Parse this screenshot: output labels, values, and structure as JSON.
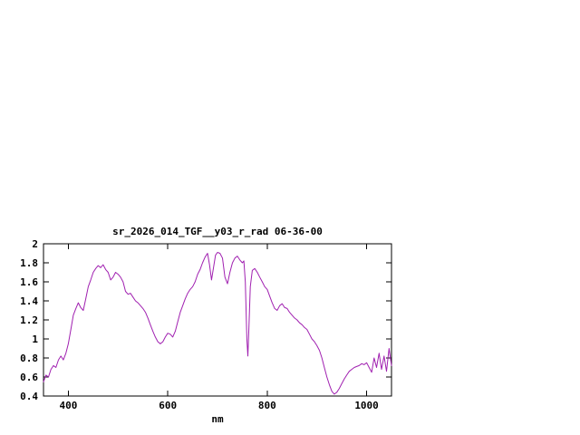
{
  "page": {
    "background": "#ffffff"
  },
  "chart_data": {
    "type": "line",
    "title": "sr_2026_014_TGF__y03_r_rad 06-36-00",
    "xlabel": "nm",
    "ylabel": "",
    "xlim": [
      350,
      1050
    ],
    "ylim": [
      0.4,
      2
    ],
    "grid": false,
    "legend": "none",
    "line_color": "#a020b0",
    "xticks": {
      "values": [
        400,
        600,
        800,
        1000
      ],
      "labels": [
        "400",
        "600",
        "800",
        "1000"
      ]
    },
    "yticks": {
      "values": [
        0.4,
        0.6,
        0.8,
        1,
        1.2,
        1.4,
        1.6,
        1.8,
        2
      ],
      "labels": [
        "0.4",
        "0.6",
        "0.8",
        "1",
        "1.2",
        "1.4",
        "1.6",
        "1.8",
        "2"
      ]
    },
    "series": [
      {
        "name": "sr_2026_014_TGF__y03_r_rad",
        "x": [
          350,
          355,
          360,
          365,
          370,
          375,
          380,
          385,
          390,
          395,
          400,
          405,
          410,
          415,
          420,
          425,
          430,
          435,
          440,
          445,
          450,
          455,
          460,
          465,
          470,
          475,
          480,
          485,
          490,
          495,
          500,
          505,
          510,
          515,
          520,
          525,
          530,
          535,
          540,
          545,
          550,
          555,
          560,
          565,
          570,
          575,
          580,
          585,
          590,
          595,
          600,
          605,
          610,
          615,
          620,
          625,
          630,
          635,
          640,
          645,
          650,
          655,
          660,
          665,
          670,
          675,
          680,
          684,
          688,
          692,
          696,
          700,
          705,
          710,
          715,
          720,
          725,
          730,
          735,
          740,
          745,
          750,
          753,
          756,
          759,
          761,
          763,
          766,
          770,
          775,
          780,
          785,
          790,
          795,
          800,
          805,
          810,
          815,
          820,
          825,
          830,
          835,
          840,
          845,
          850,
          855,
          860,
          865,
          870,
          875,
          880,
          885,
          890,
          895,
          900,
          905,
          910,
          915,
          920,
          925,
          930,
          935,
          940,
          945,
          950,
          955,
          960,
          965,
          970,
          975,
          980,
          985,
          990,
          995,
          1000,
          1005,
          1010,
          1015,
          1020,
          1025,
          1030,
          1035,
          1040,
          1045,
          1050
        ],
        "y": [
          0.55,
          0.62,
          0.6,
          0.68,
          0.72,
          0.7,
          0.78,
          0.82,
          0.78,
          0.85,
          0.95,
          1.1,
          1.25,
          1.32,
          1.38,
          1.33,
          1.3,
          1.42,
          1.55,
          1.62,
          1.7,
          1.74,
          1.77,
          1.75,
          1.78,
          1.73,
          1.7,
          1.62,
          1.65,
          1.7,
          1.68,
          1.65,
          1.6,
          1.5,
          1.47,
          1.48,
          1.44,
          1.4,
          1.38,
          1.35,
          1.32,
          1.28,
          1.22,
          1.15,
          1.08,
          1.02,
          0.97,
          0.95,
          0.97,
          1.02,
          1.06,
          1.05,
          1.02,
          1.08,
          1.18,
          1.28,
          1.35,
          1.42,
          1.48,
          1.52,
          1.55,
          1.6,
          1.68,
          1.73,
          1.8,
          1.86,
          1.9,
          1.78,
          1.62,
          1.75,
          1.88,
          1.91,
          1.9,
          1.85,
          1.65,
          1.58,
          1.7,
          1.8,
          1.85,
          1.87,
          1.83,
          1.8,
          1.82,
          1.6,
          1.0,
          0.82,
          1.1,
          1.55,
          1.72,
          1.74,
          1.7,
          1.65,
          1.6,
          1.55,
          1.52,
          1.45,
          1.38,
          1.32,
          1.3,
          1.35,
          1.37,
          1.33,
          1.32,
          1.28,
          1.25,
          1.22,
          1.2,
          1.17,
          1.15,
          1.12,
          1.1,
          1.05,
          1.0,
          0.97,
          0.93,
          0.88,
          0.8,
          0.7,
          0.6,
          0.52,
          0.45,
          0.42,
          0.44,
          0.48,
          0.53,
          0.58,
          0.62,
          0.66,
          0.68,
          0.7,
          0.71,
          0.72,
          0.74,
          0.73,
          0.75,
          0.7,
          0.65,
          0.8,
          0.7,
          0.85,
          0.68,
          0.82,
          0.66,
          0.9,
          0.72
        ]
      }
    ]
  }
}
